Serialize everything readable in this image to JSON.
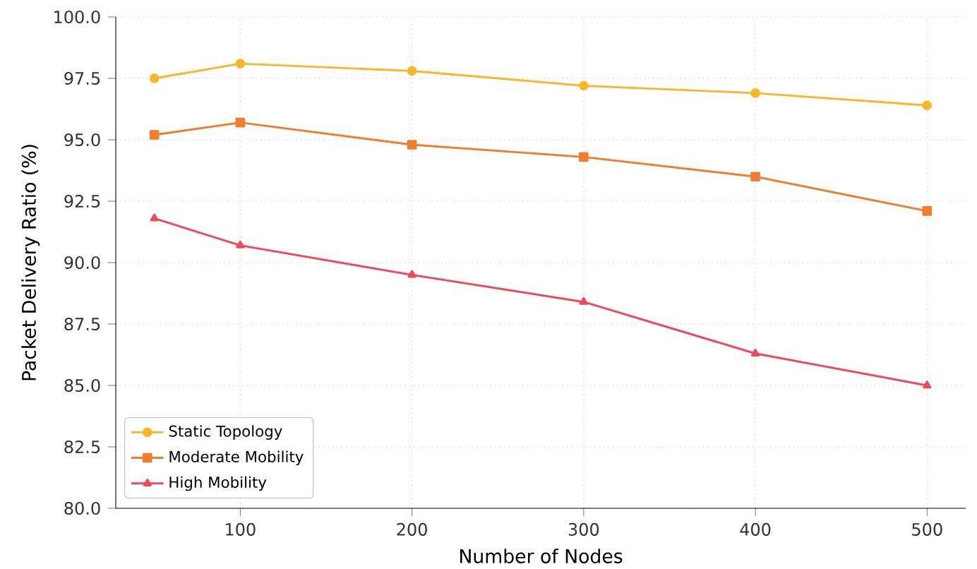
{
  "chart_data": {
    "type": "line",
    "xlabel": "Number of Nodes",
    "ylabel": "Packet Delivery Ratio (%)",
    "x": [
      50,
      100,
      200,
      300,
      400,
      500
    ],
    "series": [
      {
        "name": "Static Topology",
        "color": "#f9b62b",
        "marker": "circle",
        "values": [
          97.5,
          98.1,
          97.8,
          97.2,
          96.9,
          96.4
        ]
      },
      {
        "name": "Moderate Mobility",
        "color": "#f07c2e",
        "marker": "square",
        "values": [
          95.2,
          95.7,
          94.8,
          94.3,
          93.5,
          92.1
        ]
      },
      {
        "name": "High Mobility",
        "color": "#f2475b",
        "marker": "triangle",
        "values": [
          91.8,
          90.7,
          89.5,
          88.4,
          86.3,
          85.0
        ]
      }
    ],
    "xlim": [
      27.5,
      522.5
    ],
    "ylim": [
      80,
      100
    ],
    "xticks": [
      100,
      200,
      300,
      400,
      500
    ],
    "yticks": [
      {
        "value": 80,
        "label": "80.0"
      },
      {
        "value": 82.5,
        "label": "82.5"
      },
      {
        "value": 85,
        "label": "85.0"
      },
      {
        "value": 87.5,
        "label": "87.5"
      },
      {
        "value": 90,
        "label": "90.0"
      },
      {
        "value": 92.5,
        "label": "92.5"
      },
      {
        "value": 95,
        "label": "95.0"
      },
      {
        "value": 97.5,
        "label": "97.5"
      },
      {
        "value": 100,
        "label": "100.0"
      }
    ],
    "grid": true,
    "legend": "bottom left",
    "line_style": "solid"
  }
}
